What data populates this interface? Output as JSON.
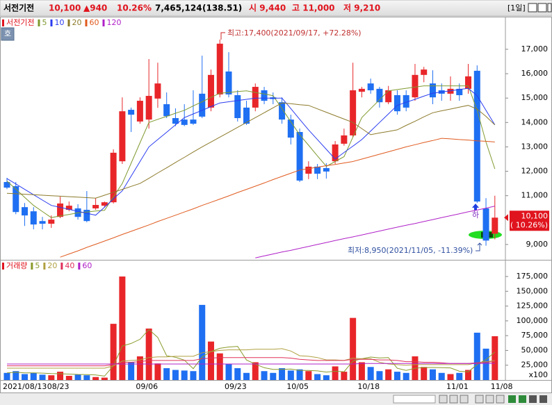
{
  "header": {
    "name": "서전기전",
    "price": "10,100",
    "change": "▲940",
    "rate": "10.26%",
    "volume": "7,465,124",
    "volume_rate": "(138.51)",
    "open": "시 9,440",
    "high": "고 11,000",
    "low": "저 9,210",
    "period": "[1일]"
  },
  "chart_data": {
    "type": "candlestick",
    "name": "서전기전",
    "up_color": "#e8262a",
    "down_color": "#1f6ff2",
    "grid": false,
    "categories": [
      "2021/08/13",
      null,
      null,
      null,
      null,
      "08/23",
      null,
      null,
      null,
      null,
      null,
      null,
      null,
      null,
      null,
      "09/06",
      null,
      null,
      null,
      null,
      null,
      null,
      null,
      null,
      null,
      "09/23",
      null,
      null,
      null,
      null,
      null,
      null,
      "10/05",
      null,
      null,
      null,
      null,
      null,
      null,
      null,
      "10/18",
      null,
      null,
      null,
      null,
      null,
      null,
      null,
      null,
      null,
      "11/01",
      null,
      null,
      null,
      null,
      "11/08"
    ],
    "open": [
      11560,
      11390,
      10530,
      10360,
      9960,
      9850,
      10130,
      10420,
      10480,
      10420,
      10480,
      10590,
      10730,
      12410,
      14520,
      14040,
      14120,
      14980,
      14750,
      14180,
      14120,
      14120,
      15180,
      14610,
      15150,
      16090,
      15120,
      14610,
      14610,
      15320,
      15030,
      14830,
      14120,
      13610,
      11900,
      12190,
      12130,
      12410,
      13130,
      13470,
      15260,
      15600,
      15380,
      14830,
      15120,
      15120,
      15030,
      15950,
      15600,
      15320,
      15180,
      15380,
      15380,
      16120,
      10480,
      9440
    ],
    "high": [
      11730,
      11560,
      10700,
      10530,
      10130,
      10190,
      10960,
      10760,
      10650,
      11190,
      10900,
      10760,
      12900,
      15030,
      14610,
      15030,
      16600,
      16450,
      15230,
      14580,
      14750,
      15320,
      16740,
      16170,
      17400,
      16880,
      15320,
      14890,
      15600,
      15460,
      15230,
      15030,
      14320,
      13750,
      12410,
      12300,
      12330,
      13240,
      13750,
      16450,
      15460,
      15800,
      15460,
      15500,
      15320,
      15320,
      16400,
      16280,
      16140,
      15600,
      15890,
      15600,
      16400,
      16340,
      10900,
      11000
    ],
    "low": [
      11270,
      10240,
      9760,
      9620,
      9620,
      9680,
      10080,
      10360,
      10020,
      9910,
      10420,
      10530,
      10680,
      12300,
      13610,
      13950,
      13750,
      14600,
      14180,
      13850,
      13850,
      13900,
      14180,
      14460,
      15030,
      15030,
      14040,
      13900,
      14460,
      14750,
      14750,
      13950,
      13100,
      11560,
      11680,
      11680,
      11700,
      12300,
      13050,
      13400,
      15030,
      15180,
      14610,
      14750,
      14320,
      14460,
      14890,
      15650,
      14750,
      14890,
      14890,
      14890,
      15180,
      10700,
      8950,
      9210
    ],
    "close": [
      11330,
      10330,
      10190,
      9820,
      9850,
      10020,
      10680,
      10590,
      10130,
      9960,
      10620,
      10730,
      12760,
      14460,
      14320,
      14890,
      15090,
      15600,
      14260,
      13950,
      13900,
      13950,
      14240,
      15950,
      17230,
      15150,
      14180,
      13950,
      15460,
      14890,
      14960,
      14120,
      13380,
      11620,
      12190,
      11900,
      11990,
      13100,
      13470,
      15320,
      15380,
      15320,
      14830,
      15320,
      14460,
      14610,
      15950,
      16170,
      15030,
      15180,
      15380,
      15120,
      15890,
      10760,
      9160,
      10100
    ],
    "ylim": [
      8400,
      18280
    ],
    "yticks": [
      {
        "value": 9000,
        "label": "9,000"
      },
      {
        "value": 11000,
        "label": "11,000"
      },
      {
        "value": 12000,
        "label": "12,000"
      },
      {
        "value": 13000,
        "label": "13,000"
      },
      {
        "value": 14000,
        "label": "14,000"
      },
      {
        "value": 15000,
        "label": "15,000"
      },
      {
        "value": 16000,
        "label": "16,000"
      },
      {
        "value": 17000,
        "label": "17,000"
      }
    ],
    "ma_series": [
      {
        "name": "5",
        "color": "#7f9a2f",
        "values": [
          11600,
          11270,
          10930,
          10600,
          10350,
          10100,
          10170,
          10230,
          10300,
          10330,
          10370,
          10400,
          10950,
          11500,
          12330,
          13170,
          14000,
          14130,
          14250,
          14380,
          14500,
          14680,
          14850,
          15030,
          15200,
          15230,
          15270,
          15300,
          15230,
          15170,
          15100,
          14570,
          14030,
          13500,
          13070,
          12630,
          12200,
          12400,
          12600,
          13400,
          14200,
          14570,
          14930,
          15300,
          15350,
          15400,
          15450,
          15500,
          15500,
          15500,
          15500,
          15500,
          15500,
          14500,
          13200,
          12100
        ]
      },
      {
        "name": "10",
        "color": "#2a3cf0",
        "values": [
          11700,
          11480,
          11260,
          11040,
          10820,
          10600,
          10520,
          10440,
          10360,
          10280,
          10200,
          10530,
          10870,
          11200,
          11800,
          12400,
          13000,
          13300,
          13600,
          13900,
          14200,
          14350,
          14500,
          14650,
          14800,
          14850,
          14900,
          14950,
          15000,
          15000,
          15000,
          15000,
          14570,
          14130,
          13700,
          13300,
          12900,
          12500,
          12770,
          13030,
          13300,
          13650,
          14000,
          14350,
          14700,
          14830,
          14950,
          15080,
          15200,
          15250,
          15300,
          15350,
          15400,
          15100,
          14500,
          13900
        ]
      },
      {
        "name": "20",
        "color": "#8c7a2a",
        "values": [
          11100,
          11080,
          11060,
          11040,
          11020,
          11000,
          10980,
          10960,
          10940,
          10920,
          10900,
          11020,
          11140,
          11260,
          11380,
          11500,
          11710,
          11930,
          12140,
          12360,
          12570,
          12790,
          13000,
          13200,
          13400,
          13600,
          13800,
          14000,
          14200,
          14400,
          14600,
          14800,
          14770,
          14730,
          14700,
          14560,
          14420,
          14280,
          14140,
          14000,
          13750,
          13500,
          13570,
          13630,
          13700,
          13880,
          14050,
          14230,
          14400,
          14480,
          14550,
          14630,
          14700,
          14550,
          14250,
          13900
        ]
      },
      {
        "name": "60",
        "color": "#e05a1e",
        "values": [
          null,
          null,
          null,
          null,
          null,
          null,
          8480,
          8610,
          8740,
          8880,
          9010,
          9140,
          9270,
          9410,
          9540,
          9670,
          9800,
          9940,
          10070,
          10200,
          10330,
          10460,
          10600,
          10730,
          10860,
          10990,
          11130,
          11260,
          11390,
          11520,
          11660,
          11790,
          11920,
          12050,
          12110,
          12170,
          12230,
          12280,
          12340,
          12400,
          12500,
          12600,
          12700,
          12800,
          12900,
          13000,
          13090,
          13180,
          13260,
          13350,
          13330,
          13300,
          13280,
          13250,
          13230,
          13200
        ]
      },
      {
        "name": "120",
        "color": "#b020c8",
        "values": [
          null,
          null,
          null,
          null,
          null,
          null,
          null,
          null,
          null,
          null,
          null,
          null,
          null,
          null,
          null,
          null,
          null,
          null,
          null,
          null,
          null,
          null,
          null,
          null,
          null,
          null,
          null,
          null,
          8450,
          8530,
          8610,
          8690,
          8760,
          8840,
          8920,
          9000,
          9080,
          9160,
          9240,
          9310,
          9390,
          9470,
          9550,
          9630,
          9710,
          9790,
          9860,
          9940,
          10020,
          10100,
          10180,
          10260,
          10340,
          10410,
          10490,
          10570
        ]
      }
    ],
    "current_price": {
      "value": 10100,
      "label": "10,100",
      "change_label": "( 10.26%)"
    },
    "annotations": [
      {
        "text": "최고:17,400(2021/09/17, +72.28%)"
      },
      {
        "text": "최저:8,950(2021/11/05, -11.39%)"
      },
      {
        "text": "하"
      }
    ],
    "volume": {
      "name": "거래량",
      "unit_label": "x100",
      "ylim": [
        0,
        199700
      ],
      "yticks": [
        {
          "value": 25000,
          "label": "25,000"
        },
        {
          "value": 50000,
          "label": "50,000"
        },
        {
          "value": 75000,
          "label": "75,000"
        },
        {
          "value": 100000,
          "label": "100,000"
        },
        {
          "value": 125000,
          "label": "125,000"
        },
        {
          "value": 150000,
          "label": "150,000"
        },
        {
          "value": 175000,
          "label": "175,000"
        }
      ],
      "values": [
        12000,
        15000,
        10000,
        12000,
        9000,
        8000,
        14000,
        7000,
        9000,
        8000,
        5000,
        4000,
        95000,
        175000,
        30000,
        40000,
        87000,
        28000,
        20000,
        17000,
        16000,
        15000,
        127000,
        65000,
        45000,
        27000,
        20000,
        12000,
        30000,
        15000,
        12000,
        20000,
        16000,
        18000,
        15000,
        10000,
        8000,
        23000,
        14000,
        105000,
        30000,
        22000,
        15000,
        18000,
        14000,
        12000,
        40000,
        22000,
        18000,
        12000,
        10000,
        12000,
        17000,
        80000,
        53000,
        74000
      ],
      "ma_series": [
        {
          "name": "5",
          "color": "#8a9a2a",
          "values": [
            12000,
            13000,
            12000,
            12000,
            11600,
            10800,
            10600,
            10000,
            9400,
            9200,
            8600,
            6600,
            24200,
            57400,
            61800,
            68800,
            85400,
            72000,
            41000,
            38400,
            33600,
            19200,
            39000,
            48000,
            53600,
            55800,
            56800,
            33800,
            26800,
            20800,
            17800,
            17800,
            18600,
            16200,
            16200,
            15400,
            13400,
            14800,
            14000,
            32000,
            36000,
            38800,
            37200,
            38000,
            19800,
            16200,
            19800,
            21200,
            21200,
            20800,
            20400,
            14800,
            13800,
            26200,
            34400,
            47200
          ]
        },
        {
          "name": "20",
          "color": "#b0a040",
          "values": [
            20000,
            20000,
            20000,
            20000,
            20000,
            20000,
            20000,
            20000,
            20000,
            20000,
            20000,
            20000,
            24000,
            32000,
            33000,
            34000,
            38000,
            39000,
            39000,
            40000,
            40000,
            40000,
            46000,
            48000,
            50000,
            51000,
            51000,
            51000,
            52000,
            52000,
            52000,
            53000,
            49000,
            41000,
            40000,
            38000,
            34000,
            34000,
            33000,
            37000,
            36000,
            36000,
            30000,
            27000,
            26000,
            25000,
            26000,
            26000,
            26000,
            26000,
            26000,
            26000,
            26000,
            29000,
            31000,
            33000
          ]
        },
        {
          "name": "40",
          "color": "#e0305a",
          "values": [
            24000,
            24000,
            24000,
            24000,
            24000,
            24000,
            24000,
            24000,
            24000,
            24000,
            24000,
            24000,
            26000,
            30000,
            30000,
            31000,
            33000,
            33000,
            33000,
            33000,
            33000,
            33000,
            36000,
            37000,
            38000,
            38000,
            38000,
            38000,
            38000,
            38000,
            38000,
            38000,
            37000,
            35000,
            34000,
            33000,
            33000,
            33000,
            33000,
            35000,
            35000,
            35000,
            34000,
            34000,
            33000,
            31000,
            31000,
            30000,
            30000,
            29000,
            28000,
            28000,
            28000,
            29000,
            30000,
            31000
          ]
        },
        {
          "name": "60",
          "color": "#b020c8",
          "values": [
            27000,
            27000,
            27000,
            27000,
            27000,
            27000,
            27000,
            27000,
            27000,
            27000,
            27000,
            27000,
            27000,
            27000,
            27000,
            27000,
            27000,
            27000,
            27000,
            27000,
            27000,
            27000,
            27000,
            27000,
            27000,
            27000,
            27000,
            27000,
            27000,
            27000,
            27000,
            27000,
            27000,
            27000,
            27000,
            27000,
            27000,
            27000,
            27000,
            27000,
            28000,
            28000,
            28000,
            28000,
            28000,
            28000,
            28000,
            28000,
            28000,
            28000,
            28000,
            28000,
            28000,
            28000,
            28000,
            28000
          ]
        }
      ]
    }
  }
}
